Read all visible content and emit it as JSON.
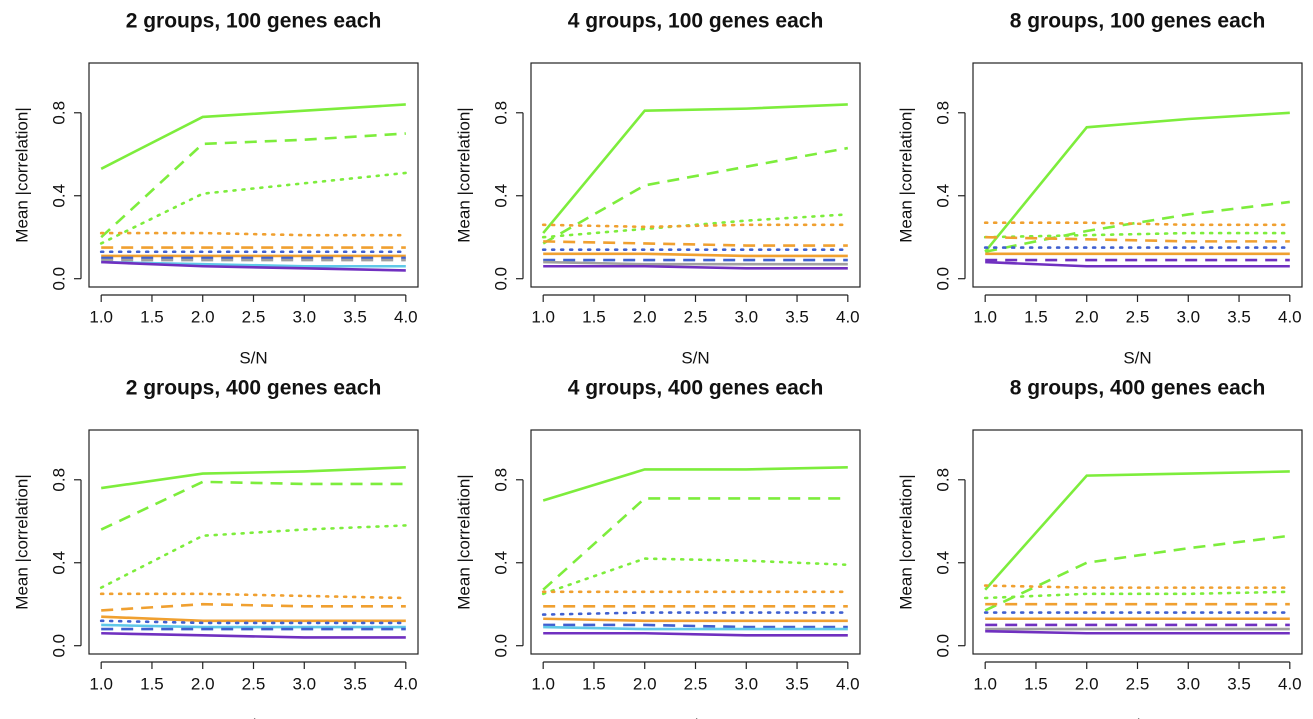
{
  "chart_data": [
    {
      "type": "line",
      "title": "2 groups, 100 genes each",
      "xlabel": "S/N",
      "ylabel": "Mean |correlation|",
      "x": [
        1,
        2,
        3,
        4
      ],
      "xlim": [
        0.88,
        4.12
      ],
      "ylim": [
        -0.04,
        1.04
      ],
      "xticks": [
        {
          "value": 1,
          "label": "1.0"
        },
        1.5,
        {
          "value": 2,
          "label": "2.0"
        },
        2.5,
        {
          "value": 3,
          "label": "3.0"
        },
        3.5,
        {
          "value": 4,
          "label": "4.0"
        }
      ],
      "yticks": [
        {
          "value": 0,
          "label": "0.0"
        },
        0.4,
        0.8
      ],
      "series": [
        {
          "color": "#7ded3c",
          "dash": "solid",
          "values": [
            0.53,
            0.78,
            0.81,
            0.84
          ]
        },
        {
          "color": "#7ded3c",
          "dash": "dashed",
          "values": [
            0.2,
            0.65,
            0.67,
            0.7
          ]
        },
        {
          "color": "#7ded3c",
          "dash": "dotted",
          "values": [
            0.17,
            0.41,
            0.46,
            0.51
          ]
        },
        {
          "color": "#f0a030",
          "dash": "dotted",
          "values": [
            0.22,
            0.22,
            0.21,
            0.21
          ]
        },
        {
          "color": "#f0a030",
          "dash": "dashed",
          "values": [
            0.15,
            0.15,
            0.15,
            0.15
          ]
        },
        {
          "color": "#4060d0",
          "dash": "dotted",
          "values": [
            0.13,
            0.13,
            0.13,
            0.13
          ]
        },
        {
          "color": "#f0a030",
          "dash": "solid",
          "values": [
            0.11,
            0.11,
            0.11,
            0.11
          ]
        },
        {
          "color": "#4060d0",
          "dash": "dashed",
          "values": [
            0.1,
            0.1,
            0.1,
            0.1
          ]
        },
        {
          "color": "#a0a0a0",
          "dash": "dashed",
          "values": [
            0.09,
            0.09,
            0.09,
            0.09
          ]
        },
        {
          "color": "#60c8e8",
          "dash": "solid",
          "values": [
            0.08,
            0.07,
            0.06,
            0.06
          ]
        },
        {
          "color": "#7030c0",
          "dash": "solid",
          "values": [
            0.08,
            0.06,
            0.05,
            0.04
          ]
        }
      ]
    },
    {
      "type": "line",
      "title": "4 groups, 100 genes each",
      "xlabel": "S/N",
      "ylabel": "Mean |correlation|",
      "x": [
        1,
        2,
        3,
        4
      ],
      "xlim": [
        0.88,
        4.12
      ],
      "ylim": [
        -0.04,
        1.04
      ],
      "xticks": [
        {
          "value": 1,
          "label": "1.0"
        },
        1.5,
        {
          "value": 2,
          "label": "2.0"
        },
        2.5,
        {
          "value": 3,
          "label": "3.0"
        },
        3.5,
        {
          "value": 4,
          "label": "4.0"
        }
      ],
      "yticks": [
        {
          "value": 0,
          "label": "0.0"
        },
        0.4,
        0.8
      ],
      "series": [
        {
          "color": "#7ded3c",
          "dash": "solid",
          "values": [
            0.22,
            0.81,
            0.82,
            0.84
          ]
        },
        {
          "color": "#7ded3c",
          "dash": "dashed",
          "values": [
            0.17,
            0.45,
            0.54,
            0.63
          ]
        },
        {
          "color": "#7ded3c",
          "dash": "dotted",
          "values": [
            0.2,
            0.24,
            0.28,
            0.31
          ]
        },
        {
          "color": "#f0a030",
          "dash": "dotted",
          "values": [
            0.26,
            0.25,
            0.26,
            0.26
          ]
        },
        {
          "color": "#f0a030",
          "dash": "dashed",
          "values": [
            0.18,
            0.17,
            0.16,
            0.16
          ]
        },
        {
          "color": "#4060d0",
          "dash": "dotted",
          "values": [
            0.14,
            0.14,
            0.14,
            0.14
          ]
        },
        {
          "color": "#f0a030",
          "dash": "solid",
          "values": [
            0.12,
            0.12,
            0.11,
            0.11
          ]
        },
        {
          "color": "#4060d0",
          "dash": "dashed",
          "values": [
            0.09,
            0.09,
            0.09,
            0.09
          ]
        },
        {
          "color": "#a0a0a0",
          "dash": "solid",
          "values": [
            0.08,
            0.07,
            0.07,
            0.07
          ]
        },
        {
          "color": "#7030c0",
          "dash": "solid",
          "values": [
            0.06,
            0.06,
            0.05,
            0.05
          ]
        }
      ]
    },
    {
      "type": "line",
      "title": "8 groups, 100 genes each",
      "xlabel": "S/N",
      "ylabel": "Mean |correlation|",
      "x": [
        1,
        2,
        3,
        4
      ],
      "xlim": [
        0.88,
        4.12
      ],
      "ylim": [
        -0.04,
        1.04
      ],
      "xticks": [
        {
          "value": 1,
          "label": "1.0"
        },
        1.5,
        {
          "value": 2,
          "label": "2.0"
        },
        2.5,
        {
          "value": 3,
          "label": "3.0"
        },
        3.5,
        {
          "value": 4,
          "label": "4.0"
        }
      ],
      "yticks": [
        {
          "value": 0,
          "label": "0.0"
        },
        0.4,
        0.8
      ],
      "series": [
        {
          "color": "#7ded3c",
          "dash": "solid",
          "values": [
            0.13,
            0.73,
            0.77,
            0.8
          ]
        },
        {
          "color": "#7ded3c",
          "dash": "dashed",
          "values": [
            0.13,
            0.23,
            0.31,
            0.37
          ]
        },
        {
          "color": "#f0a030",
          "dash": "dotted",
          "values": [
            0.27,
            0.27,
            0.26,
            0.26
          ]
        },
        {
          "color": "#7ded3c",
          "dash": "dotted",
          "values": [
            0.2,
            0.21,
            0.22,
            0.22
          ]
        },
        {
          "color": "#f0a030",
          "dash": "dashed",
          "values": [
            0.2,
            0.19,
            0.18,
            0.18
          ]
        },
        {
          "color": "#4060d0",
          "dash": "dotted",
          "values": [
            0.15,
            0.15,
            0.15,
            0.15
          ]
        },
        {
          "color": "#f0a030",
          "dash": "solid",
          "values": [
            0.12,
            0.12,
            0.12,
            0.12
          ]
        },
        {
          "color": "#7030c0",
          "dash": "dashed",
          "values": [
            0.09,
            0.09,
            0.09,
            0.09
          ]
        },
        {
          "color": "#7030c0",
          "dash": "solid",
          "values": [
            0.08,
            0.06,
            0.06,
            0.06
          ]
        }
      ]
    },
    {
      "type": "line",
      "title": "2 groups, 400 genes each",
      "xlabel": "S/N",
      "ylabel": "Mean |correlation|",
      "x": [
        1,
        2,
        3,
        4
      ],
      "xlim": [
        0.88,
        4.12
      ],
      "ylim": [
        -0.04,
        1.04
      ],
      "xticks": [
        {
          "value": 1,
          "label": "1.0"
        },
        1.5,
        {
          "value": 2,
          "label": "2.0"
        },
        2.5,
        {
          "value": 3,
          "label": "3.0"
        },
        3.5,
        {
          "value": 4,
          "label": "4.0"
        }
      ],
      "yticks": [
        {
          "value": 0,
          "label": "0.0"
        },
        0.4,
        0.8
      ],
      "series": [
        {
          "color": "#7ded3c",
          "dash": "solid",
          "values": [
            0.76,
            0.83,
            0.84,
            0.86
          ]
        },
        {
          "color": "#7ded3c",
          "dash": "dashed",
          "values": [
            0.56,
            0.79,
            0.78,
            0.78
          ]
        },
        {
          "color": "#7ded3c",
          "dash": "dotted",
          "values": [
            0.28,
            0.53,
            0.56,
            0.58
          ]
        },
        {
          "color": "#f0a030",
          "dash": "dotted",
          "values": [
            0.25,
            0.25,
            0.24,
            0.23
          ]
        },
        {
          "color": "#f0a030",
          "dash": "dashed",
          "values": [
            0.17,
            0.2,
            0.19,
            0.19
          ]
        },
        {
          "color": "#f0a030",
          "dash": "solid",
          "values": [
            0.14,
            0.12,
            0.12,
            0.12
          ]
        },
        {
          "color": "#4060d0",
          "dash": "dotted",
          "values": [
            0.12,
            0.11,
            0.11,
            0.11
          ]
        },
        {
          "color": "#60c8e8",
          "dash": "solid",
          "values": [
            0.1,
            0.09,
            0.09,
            0.09
          ]
        },
        {
          "color": "#4060d0",
          "dash": "dashed",
          "values": [
            0.08,
            0.08,
            0.08,
            0.08
          ]
        },
        {
          "color": "#7030c0",
          "dash": "solid",
          "values": [
            0.06,
            0.05,
            0.04,
            0.04
          ]
        }
      ]
    },
    {
      "type": "line",
      "title": "4 groups, 400 genes each",
      "xlabel": "S/N",
      "ylabel": "Mean |correlation|",
      "x": [
        1,
        2,
        3,
        4
      ],
      "xlim": [
        0.88,
        4.12
      ],
      "ylim": [
        -0.04,
        1.04
      ],
      "xticks": [
        {
          "value": 1,
          "label": "1.0"
        },
        1.5,
        {
          "value": 2,
          "label": "2.0"
        },
        2.5,
        {
          "value": 3,
          "label": "3.0"
        },
        3.5,
        {
          "value": 4,
          "label": "4.0"
        }
      ],
      "yticks": [
        {
          "value": 0,
          "label": "0.0"
        },
        0.4,
        0.8
      ],
      "series": [
        {
          "color": "#7ded3c",
          "dash": "solid",
          "values": [
            0.7,
            0.85,
            0.85,
            0.86
          ]
        },
        {
          "color": "#7ded3c",
          "dash": "dashed",
          "values": [
            0.27,
            0.71,
            0.71,
            0.71
          ]
        },
        {
          "color": "#7ded3c",
          "dash": "dotted",
          "values": [
            0.25,
            0.42,
            0.41,
            0.39
          ]
        },
        {
          "color": "#f0a030",
          "dash": "dotted",
          "values": [
            0.26,
            0.26,
            0.26,
            0.26
          ]
        },
        {
          "color": "#f0a030",
          "dash": "dashed",
          "values": [
            0.19,
            0.19,
            0.19,
            0.19
          ]
        },
        {
          "color": "#4060d0",
          "dash": "dotted",
          "values": [
            0.15,
            0.16,
            0.16,
            0.16
          ]
        },
        {
          "color": "#f0a030",
          "dash": "solid",
          "values": [
            0.13,
            0.12,
            0.12,
            0.12
          ]
        },
        {
          "color": "#4060d0",
          "dash": "dashed",
          "values": [
            0.1,
            0.1,
            0.09,
            0.09
          ]
        },
        {
          "color": "#60c8e8",
          "dash": "solid",
          "values": [
            0.09,
            0.08,
            0.08,
            0.08
          ]
        },
        {
          "color": "#7030c0",
          "dash": "solid",
          "values": [
            0.06,
            0.06,
            0.05,
            0.05
          ]
        }
      ]
    },
    {
      "type": "line",
      "title": "8 groups, 400 genes each",
      "xlabel": "S/N",
      "ylabel": "Mean |correlation|",
      "x": [
        1,
        2,
        3,
        4
      ],
      "xlim": [
        0.88,
        4.12
      ],
      "ylim": [
        -0.04,
        1.04
      ],
      "xticks": [
        {
          "value": 1,
          "label": "1.0"
        },
        1.5,
        {
          "value": 2,
          "label": "2.0"
        },
        2.5,
        {
          "value": 3,
          "label": "3.0"
        },
        3.5,
        {
          "value": 4,
          "label": "4.0"
        }
      ],
      "yticks": [
        {
          "value": 0,
          "label": "0.0"
        },
        0.4,
        0.8
      ],
      "series": [
        {
          "color": "#7ded3c",
          "dash": "solid",
          "values": [
            0.27,
            0.82,
            0.83,
            0.84
          ]
        },
        {
          "color": "#7ded3c",
          "dash": "dashed",
          "values": [
            0.17,
            0.4,
            0.47,
            0.53
          ]
        },
        {
          "color": "#f0a030",
          "dash": "dotted",
          "values": [
            0.29,
            0.28,
            0.28,
            0.28
          ]
        },
        {
          "color": "#7ded3c",
          "dash": "dotted",
          "values": [
            0.23,
            0.25,
            0.25,
            0.26
          ]
        },
        {
          "color": "#f0a030",
          "dash": "dashed",
          "values": [
            0.2,
            0.2,
            0.2,
            0.2
          ]
        },
        {
          "color": "#4060d0",
          "dash": "dotted",
          "values": [
            0.16,
            0.16,
            0.16,
            0.16
          ]
        },
        {
          "color": "#f0a030",
          "dash": "solid",
          "values": [
            0.13,
            0.13,
            0.13,
            0.13
          ]
        },
        {
          "color": "#7030c0",
          "dash": "dashed",
          "values": [
            0.1,
            0.1,
            0.1,
            0.1
          ]
        },
        {
          "color": "#a0a0a0",
          "dash": "solid",
          "values": [
            0.08,
            0.08,
            0.08,
            0.08
          ]
        },
        {
          "color": "#7030c0",
          "dash": "solid",
          "values": [
            0.07,
            0.06,
            0.06,
            0.06
          ]
        }
      ]
    }
  ]
}
